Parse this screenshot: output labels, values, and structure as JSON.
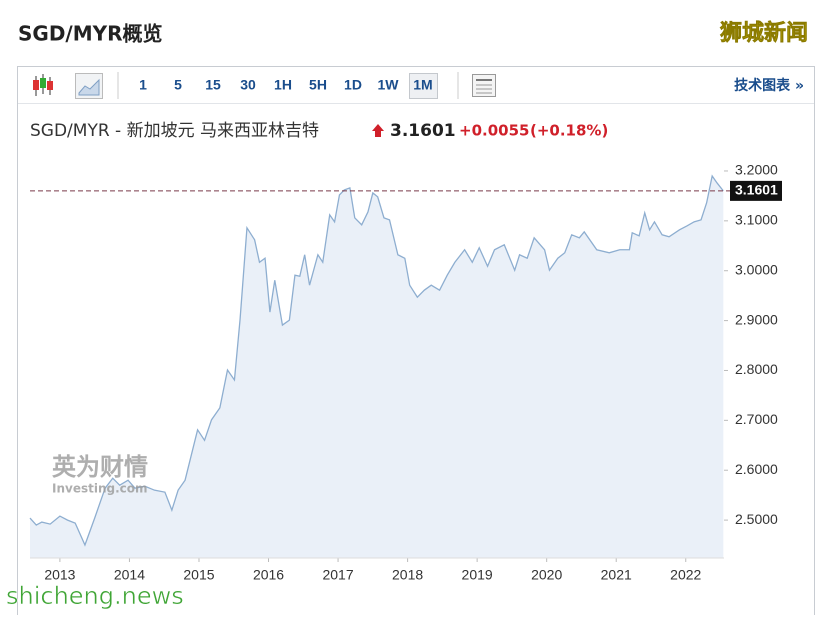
{
  "page": {
    "title": "SGD/MYR概览",
    "watermark": "狮城新闻",
    "site": "shicheng.news",
    "toolbar": {
      "intervals": [
        "1",
        "5",
        "15",
        "30",
        "1H",
        "5H",
        "1D",
        "1W",
        "1M"
      ],
      "technical_link": "技术图表 »"
    },
    "header": {
      "instrument": "SGD/MYR - 新加坡元 马来西亚林吉特",
      "change": "+0.0055",
      "change_pct": "(+0.18%)"
    },
    "logo": {
      "brand": "英为财情",
      "sub": "Investing.com"
    }
  },
  "chart_data": {
    "type": "area",
    "last_value": 3.1601,
    "x": [
      2012.57,
      2012.66,
      2012.74,
      2012.86,
      2013.0,
      2013.11,
      2013.22,
      2013.36,
      2013.5,
      2013.65,
      2013.76,
      2013.86,
      2013.98,
      2014.08,
      2014.22,
      2014.36,
      2014.51,
      2014.61,
      2014.7,
      2014.8,
      2014.98,
      2015.08,
      2015.18,
      2015.3,
      2015.41,
      2015.51,
      2015.59,
      2015.69,
      2015.8,
      2015.87,
      2015.95,
      2016.02,
      2016.09,
      2016.2,
      2016.3,
      2016.38,
      2016.45,
      2016.52,
      2016.59,
      2016.71,
      2016.78,
      2016.88,
      2016.95,
      2017.02,
      2017.09,
      2017.17,
      2017.24,
      2017.34,
      2017.43,
      2017.5,
      2017.57,
      2017.66,
      2017.74,
      2017.86,
      2017.96,
      2018.03,
      2018.14,
      2018.24,
      2018.34,
      2018.46,
      2018.57,
      2018.68,
      2018.82,
      2018.93,
      2019.03,
      2019.15,
      2019.25,
      2019.39,
      2019.54,
      2019.61,
      2019.72,
      2019.82,
      2019.97,
      2020.04,
      2020.16,
      2020.26,
      2020.36,
      2020.47,
      2020.54,
      2020.72,
      2020.9,
      2021.05,
      2021.19,
      2021.23,
      2021.33,
      2021.41,
      2021.48,
      2021.55,
      2021.66,
      2021.76,
      2021.91,
      2022.02,
      2022.12,
      2022.22,
      2022.3,
      2022.38,
      2022.45,
      2022.54
    ],
    "series": [
      {
        "color": "#8eaed0",
        "values": [
          2.504,
          2.49,
          2.496,
          2.492,
          2.508,
          2.5,
          2.494,
          2.45,
          2.504,
          2.564,
          2.584,
          2.57,
          2.58,
          2.564,
          2.568,
          2.56,
          2.556,
          2.52,
          2.56,
          2.58,
          2.681,
          2.66,
          2.701,
          2.725,
          2.801,
          2.781,
          2.901,
          3.086,
          3.062,
          3.017,
          3.025,
          2.917,
          2.981,
          2.891,
          2.901,
          2.991,
          2.989,
          3.032,
          2.971,
          3.032,
          3.017,
          3.112,
          3.098,
          3.152,
          3.162,
          3.166,
          3.106,
          3.092,
          3.118,
          3.156,
          3.148,
          3.106,
          3.102,
          3.032,
          3.025,
          2.971,
          2.947,
          2.961,
          2.971,
          2.961,
          2.991,
          3.017,
          3.042,
          3.017,
          3.046,
          3.009,
          3.042,
          3.052,
          3.001,
          3.032,
          3.025,
          3.066,
          3.042,
          3.001,
          3.025,
          3.036,
          3.072,
          3.066,
          3.078,
          3.042,
          3.036,
          3.042,
          3.042,
          3.076,
          3.07,
          3.116,
          3.082,
          3.098,
          3.072,
          3.068,
          3.082,
          3.09,
          3.098,
          3.102,
          3.136,
          3.19,
          3.176,
          3.1601
        ]
      }
    ],
    "xlim": [
      2012.57,
      2022.55
    ],
    "xticks": [
      2013,
      2014,
      2015,
      2016,
      2017,
      2018,
      2019,
      2020,
      2021,
      2022
    ],
    "ylim": [
      2.424,
      3.222
    ],
    "yticks": [
      {
        "value": 2.5,
        "label": "2.5000"
      },
      {
        "value": 2.6,
        "label": "2.6000"
      },
      {
        "value": 2.7,
        "label": "2.7000"
      },
      {
        "value": 2.8,
        "label": "2.8000"
      },
      {
        "value": 2.9,
        "label": "2.9000"
      },
      {
        "value": 3.0,
        "label": "3.0000"
      },
      {
        "value": 3.1,
        "label": "3.1000"
      },
      {
        "value": 3.2,
        "label": "3.2000"
      }
    ],
    "grid": false
  }
}
